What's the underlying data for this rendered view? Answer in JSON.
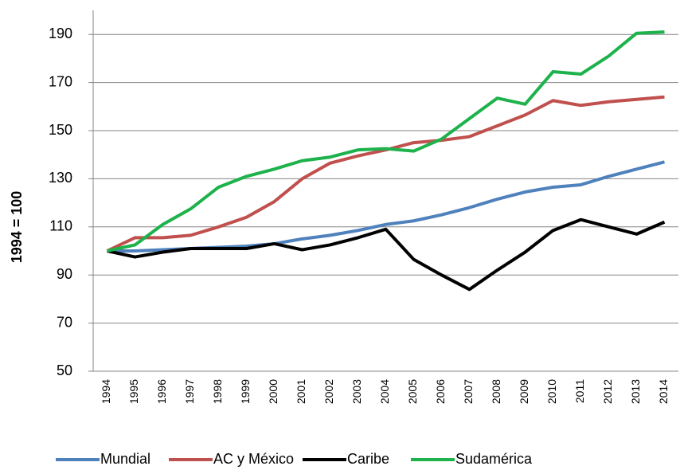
{
  "chart_data": {
    "type": "line",
    "y_label": "1994 = 100",
    "categories": [
      "1994",
      "1995",
      "1996",
      "1997",
      "1998",
      "1999",
      "2000",
      "2001",
      "2002",
      "2003",
      "2004",
      "2005",
      "2006",
      "2007",
      "2008",
      "2009",
      "2010",
      "2011",
      "2012",
      "2013",
      "2014"
    ],
    "series": [
      {
        "name": "Mundial",
        "color": "#4f81bd",
        "values": [
          100,
          100,
          100.5,
          101,
          101.5,
          102,
          103,
          105,
          106.5,
          108.5,
          111,
          112.5,
          115,
          118,
          121.5,
          124.5,
          126.5,
          127.5,
          131,
          134,
          137
        ]
      },
      {
        "name": "AC y México",
        "color": "#c0504d",
        "values": [
          100,
          105.5,
          105.5,
          106.5,
          110,
          114,
          120.5,
          130,
          136.5,
          139.5,
          142,
          145,
          146,
          147.5,
          152,
          156.5,
          162.5,
          160.5,
          162,
          163,
          164
        ]
      },
      {
        "name": "Caribe",
        "color": "#000000",
        "values": [
          100,
          97.5,
          99.5,
          101,
          101,
          101,
          103,
          100.5,
          102.5,
          105.5,
          109,
          96.5,
          90,
          84,
          92,
          99.5,
          108.5,
          113,
          110,
          107,
          112
        ]
      },
      {
        "name": "Sudamérica",
        "color": "#1db24b",
        "values": [
          100,
          102.5,
          111,
          117.5,
          126.5,
          131,
          134,
          137.5,
          139,
          142,
          142.5,
          141.5,
          146.5,
          155,
          163.5,
          161,
          174.5,
          173.5,
          181,
          190.5,
          191
        ]
      }
    ],
    "ylim": [
      50,
      200
    ],
    "yticks": [
      50,
      70,
      90,
      110,
      130,
      150,
      170,
      190
    ],
    "grid": true,
    "legend": "bottom"
  }
}
